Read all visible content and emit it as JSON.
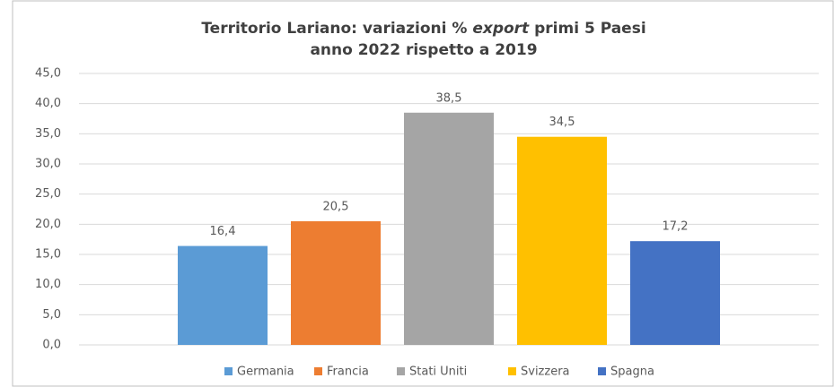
{
  "chart_data": {
    "type": "bar",
    "title": [
      "Territorio Lariano: variazioni % ",
      "export",
      " primi 5 Paesi"
    ],
    "subtitle": "anno 2022 rispetto a 2019",
    "categories": [
      null
    ],
    "series": [
      {
        "name": "Germania",
        "color": "#5b9bd5",
        "values": [
          16.4
        ],
        "value_labels": [
          "16,4"
        ]
      },
      {
        "name": "Francia",
        "color": "#ed7d31",
        "values": [
          20.5
        ],
        "value_labels": [
          "20,5"
        ]
      },
      {
        "name": "Stati Uniti",
        "color": "#a5a5a5",
        "values": [
          38.5
        ],
        "value_labels": [
          "38,5"
        ]
      },
      {
        "name": "Svizzera",
        "color": "#ffc000",
        "values": [
          34.5
        ],
        "value_labels": [
          "34,5"
        ]
      },
      {
        "name": "Spagna",
        "color": "#4472c4",
        "values": [
          17.2
        ],
        "value_labels": [
          "17,2"
        ]
      }
    ],
    "ylim": [
      0,
      45
    ],
    "yticks": [
      {
        "value": 0,
        "label": "0,0"
      },
      {
        "value": 5,
        "label": "5,0"
      },
      {
        "value": 10,
        "label": "10,0"
      },
      {
        "value": 15,
        "label": "15,0"
      },
      {
        "value": 20,
        "label": "20,0"
      },
      {
        "value": 25,
        "label": "25,0"
      },
      {
        "value": 30,
        "label": "30,0"
      },
      {
        "value": 35,
        "label": "35,0"
      },
      {
        "value": 40,
        "label": "40,0"
      },
      {
        "value": 45,
        "label": "45,0"
      }
    ],
    "grid": true,
    "legend": "bottom"
  }
}
